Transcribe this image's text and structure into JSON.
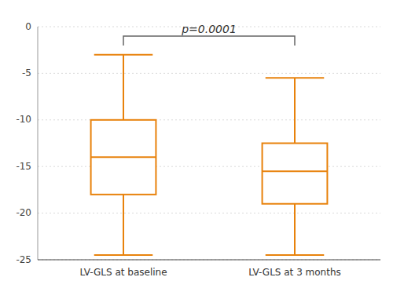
{
  "chart_data": {
    "type": "box",
    "categories": [
      "LV-GLS at baseline",
      "LV-GLS at 3 months"
    ],
    "whisker_low": [
      -24.5,
      -24.5
    ],
    "q1": [
      -18.0,
      -19.0
    ],
    "median": [
      -14.0,
      -15.5
    ],
    "q3": [
      -10.0,
      -12.5
    ],
    "whisker_high": [
      -3.0,
      -5.5
    ],
    "color": "#E8820C",
    "ylim": [
      -25,
      0
    ],
    "yticks": [
      0,
      -5,
      -10,
      -15,
      -20,
      -25
    ],
    "grid": true,
    "annotation": "p=0.0001"
  }
}
